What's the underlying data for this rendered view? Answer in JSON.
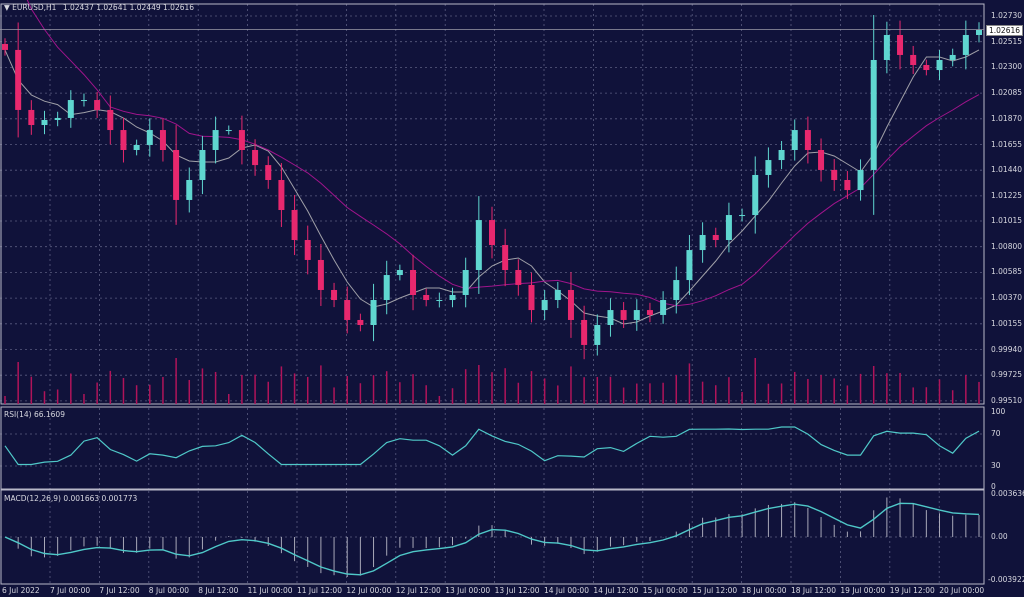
{
  "header": {
    "symbol": "EURUSD,H1",
    "ohlc": "1.02437 1.02641 1.02449 1.02616"
  },
  "current_price": "1.02616",
  "price_axis": [
    "1.02730",
    "1.02515",
    "1.02300",
    "1.02085",
    "1.01870",
    "1.01655",
    "1.01440",
    "1.01225",
    "1.01015",
    "1.00800",
    "1.00585",
    "1.00370",
    "1.00155",
    "0.99940",
    "0.99725",
    "0.99510"
  ],
  "rsi": {
    "label": "RSI(14) 66.1609",
    "levels": [
      "100",
      "70",
      "30",
      "0"
    ]
  },
  "macd": {
    "label": "MACD(12,26,9) 0.001663 0.001773",
    "ticks": [
      "0.003636",
      "0.00",
      "-0.003922"
    ]
  },
  "x_labels": [
    "6 Jul 2022",
    "7 Jul 00:00",
    "7 Jul 12:00",
    "8 Jul 00:00",
    "8 Jul 12:00",
    "11 Jul 00:00",
    "11 Jul 12:00",
    "12 Jul 00:00",
    "12 Jul 12:00",
    "13 Jul 00:00",
    "13 Jul 12:00",
    "14 Jul 00:00",
    "14 Jul 12:00",
    "15 Jul 00:00",
    "15 Jul 12:00",
    "18 Jul 00:00",
    "18 Jul 12:00",
    "19 Jul 00:00",
    "19 Jul 12:00",
    "20 Jul 00:00"
  ],
  "colors": {
    "background": "#10123a",
    "bull": "#5fd6d0",
    "bear": "#e8286e",
    "ma_fast": "#a0a0a8",
    "ma_slow": "#a0148c",
    "rsi": "#4fc8c8",
    "grid": "#5a5c80"
  },
  "chart_data": {
    "type": "candlestick",
    "symbol": "EURUSD",
    "timeframe": "H1",
    "ylim": [
      0.9951,
      1.0273
    ],
    "close": [
      1.02446,
      1.01944,
      1.01818,
      1.0186,
      1.01877,
      1.02027,
      1.02027,
      1.01944,
      1.01776,
      1.01609,
      1.01651,
      1.01776,
      1.01609,
      1.01191,
      1.01358,
      1.01609,
      1.01776,
      1.01776,
      1.01609,
      1.01483,
      1.01358,
      1.01107,
      1.00856,
      1.00689,
      1.00438,
      1.00354,
      1.00187,
      1.00145,
      1.00354,
      1.00563,
      1.00605,
      1.00396,
      1.00354,
      1.00354,
      1.00396,
      1.00605,
      1.01023,
      1.00814,
      1.00605,
      1.0048,
      1.0027,
      1.00354,
      1.00438,
      1.00187,
      0.99978,
      1.00145,
      1.0027,
      1.00187,
      1.0027,
      1.00229,
      1.00354,
      1.00521,
      1.00772,
      1.00898,
      1.00856,
      1.01065,
      1.01065,
      1.014,
      1.01525,
      1.01609,
      1.01776,
      1.01609,
      1.01442,
      1.01358,
      1.01274,
      1.01442,
      1.02362,
      1.02571,
      1.02404,
      1.0232,
      1.02278,
      1.02362,
      1.02404,
      1.02571,
      1.02616
    ],
    "indicators": [
      "MA fast (gray)",
      "MA slow (purple)",
      "Volumes",
      "RSI(14)",
      "MACD(12,26,9)"
    ],
    "grid": true
  }
}
